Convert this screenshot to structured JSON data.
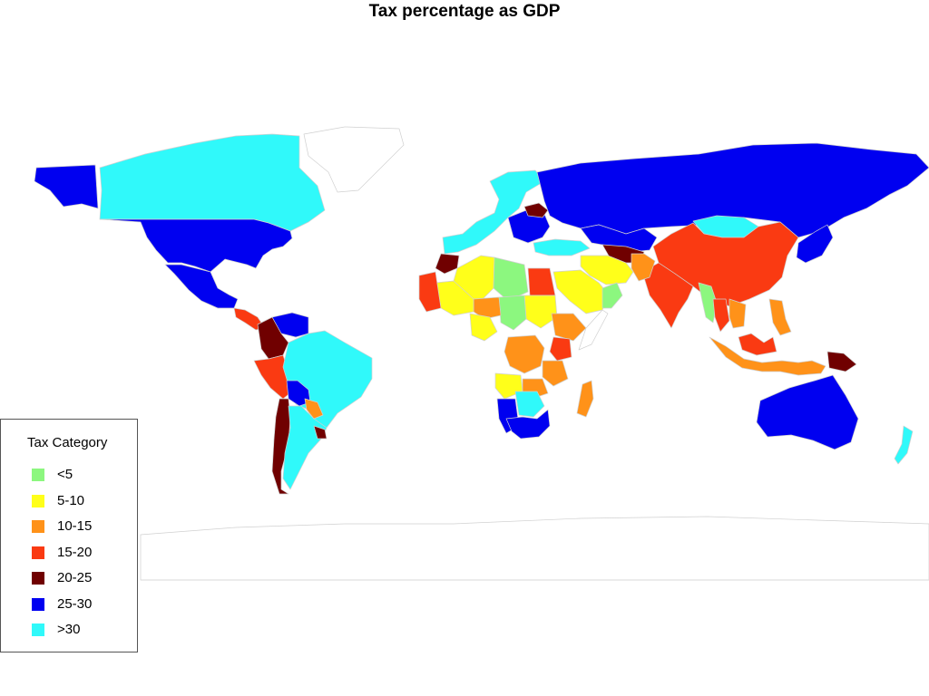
{
  "title": "Tax percentage as GDP",
  "legend": {
    "title": "Tax Category",
    "items": [
      {
        "label": "<5",
        "color": "#8cf77f"
      },
      {
        "label": "5-10",
        "color": "#ffff1a"
      },
      {
        "label": "10-15",
        "color": "#ff9219"
      },
      {
        "label": "15-20",
        "color": "#fa3a12"
      },
      {
        "label": "20-25",
        "color": "#700000"
      },
      {
        "label": "25-30",
        "color": "#0000f0"
      },
      {
        "label": ">30",
        "color": "#30f9fa"
      }
    ]
  },
  "map": {
    "type": "choropleth",
    "variable": "Tax percentage as GDP",
    "no_data_color": "#ffffff",
    "border_color": "#d0d0d0",
    "regions": [
      {
        "name": "Canada",
        "category": ">30"
      },
      {
        "name": "Greenland",
        "category": "no data"
      },
      {
        "name": "United States",
        "category": "25-30"
      },
      {
        "name": "Mexico",
        "category": "25-30"
      },
      {
        "name": "Central America",
        "category": "15-20"
      },
      {
        "name": "Venezuela",
        "category": "25-30"
      },
      {
        "name": "Colombia",
        "category": "20-25"
      },
      {
        "name": "Peru",
        "category": "15-20"
      },
      {
        "name": "Brazil",
        "category": ">30"
      },
      {
        "name": "Bolivia",
        "category": "25-30"
      },
      {
        "name": "Chile",
        "category": "20-25"
      },
      {
        "name": "Argentina",
        "category": ">30"
      },
      {
        "name": "Paraguay",
        "category": "10-15"
      },
      {
        "name": "Uruguay",
        "category": "20-25"
      },
      {
        "name": "Western Europe",
        "category": ">30"
      },
      {
        "name": "Eastern Europe",
        "category": "25-30"
      },
      {
        "name": "Belarus",
        "category": "20-25"
      },
      {
        "name": "Russia",
        "category": "25-30"
      },
      {
        "name": "Turkey",
        "category": ">30"
      },
      {
        "name": "Kazakhstan",
        "category": "25-30"
      },
      {
        "name": "Central Asia",
        "category": "20-25"
      },
      {
        "name": "Mongolia",
        "category": ">30"
      },
      {
        "name": "China",
        "category": "15-20"
      },
      {
        "name": "India",
        "category": "15-20"
      },
      {
        "name": "Pakistan",
        "category": "10-15"
      },
      {
        "name": "Iran",
        "category": "5-10"
      },
      {
        "name": "Saudi Arabia",
        "category": "5-10"
      },
      {
        "name": "Oman",
        "category": "<5"
      },
      {
        "name": "Morocco",
        "category": "20-25"
      },
      {
        "name": "Algeria",
        "category": "5-10"
      },
      {
        "name": "Libya",
        "category": "<5"
      },
      {
        "name": "Egypt",
        "category": "15-20"
      },
      {
        "name": "Sudan",
        "category": "5-10"
      },
      {
        "name": "Chad",
        "category": "<5"
      },
      {
        "name": "Niger",
        "category": "10-15"
      },
      {
        "name": "Mali",
        "category": "5-10"
      },
      {
        "name": "Mauritania",
        "category": "15-20"
      },
      {
        "name": "Nigeria",
        "category": "5-10"
      },
      {
        "name": "Ethiopia",
        "category": "10-15"
      },
      {
        "name": "Somalia",
        "category": "no data"
      },
      {
        "name": "DR Congo",
        "category": "10-15"
      },
      {
        "name": "Kenya",
        "category": "15-20"
      },
      {
        "name": "Tanzania",
        "category": "10-15"
      },
      {
        "name": "Angola",
        "category": "5-10"
      },
      {
        "name": "Zambia",
        "category": "10-15"
      },
      {
        "name": "Namibia",
        "category": "25-30"
      },
      {
        "name": "Botswana",
        "category": ">30"
      },
      {
        "name": "South Africa",
        "category": "25-30"
      },
      {
        "name": "Madagascar",
        "category": "10-15"
      },
      {
        "name": "Myanmar",
        "category": "<5"
      },
      {
        "name": "Thailand",
        "category": "15-20"
      },
      {
        "name": "Vietnam",
        "category": "10-15"
      },
      {
        "name": "Indonesia",
        "category": "10-15"
      },
      {
        "name": "Malaysia",
        "category": "15-20"
      },
      {
        "name": "Philippines",
        "category": "10-15"
      },
      {
        "name": "Japan",
        "category": "25-30"
      },
      {
        "name": "Papua New Guinea",
        "category": "20-25"
      },
      {
        "name": "Australia",
        "category": "25-30"
      },
      {
        "name": "New Zealand",
        "category": ">30"
      },
      {
        "name": "Antarctica",
        "category": "no data"
      }
    ]
  }
}
